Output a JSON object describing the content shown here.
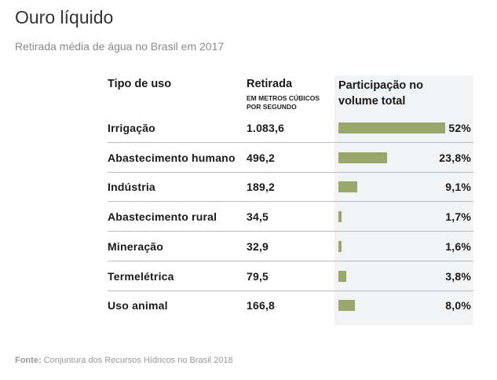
{
  "title": "Ouro líquido",
  "subtitle": "Retirada média de água no Brasil em 2017",
  "headers": {
    "tipo": "Tipo de uso",
    "retirada": "Retirada",
    "retirada_unit_1": "EM METROS CÚBICOS",
    "retirada_unit_2": "POR SEGUNDO",
    "part_1": "Participação no",
    "part_2": "volume total"
  },
  "colors": {
    "bar": "#9aa66a",
    "column_bg": "#f2f3f5"
  },
  "chart_data": {
    "type": "table",
    "rows": [
      {
        "tipo": "Irrigação",
        "retirada": "1.083,6",
        "pct_label": "52%",
        "pct": 52
      },
      {
        "tipo": "Abastecimento humano",
        "retirada": "496,2",
        "pct_label": "23,8%",
        "pct": 23.8
      },
      {
        "tipo": "Indústria",
        "retirada": "189,2",
        "pct_label": "9,1%",
        "pct": 9.1
      },
      {
        "tipo": "Abastecimento rural",
        "retirada": "34,5",
        "pct_label": "1,7%",
        "pct": 1.7
      },
      {
        "tipo": "Mineração",
        "retirada": "32,9",
        "pct_label": "1,6%",
        "pct": 1.6
      },
      {
        "tipo": "Termelétrica",
        "retirada": "79,5",
        "pct_label": "3,8%",
        "pct": 3.8
      },
      {
        "tipo": "Uso animal",
        "retirada": "166,8",
        "pct_label": "8,0%",
        "pct": 8.0
      }
    ]
  },
  "footer": {
    "label": "Fonte:",
    "text": " Conjuntura dos Recursos Hídricos no Brasil 2018"
  }
}
